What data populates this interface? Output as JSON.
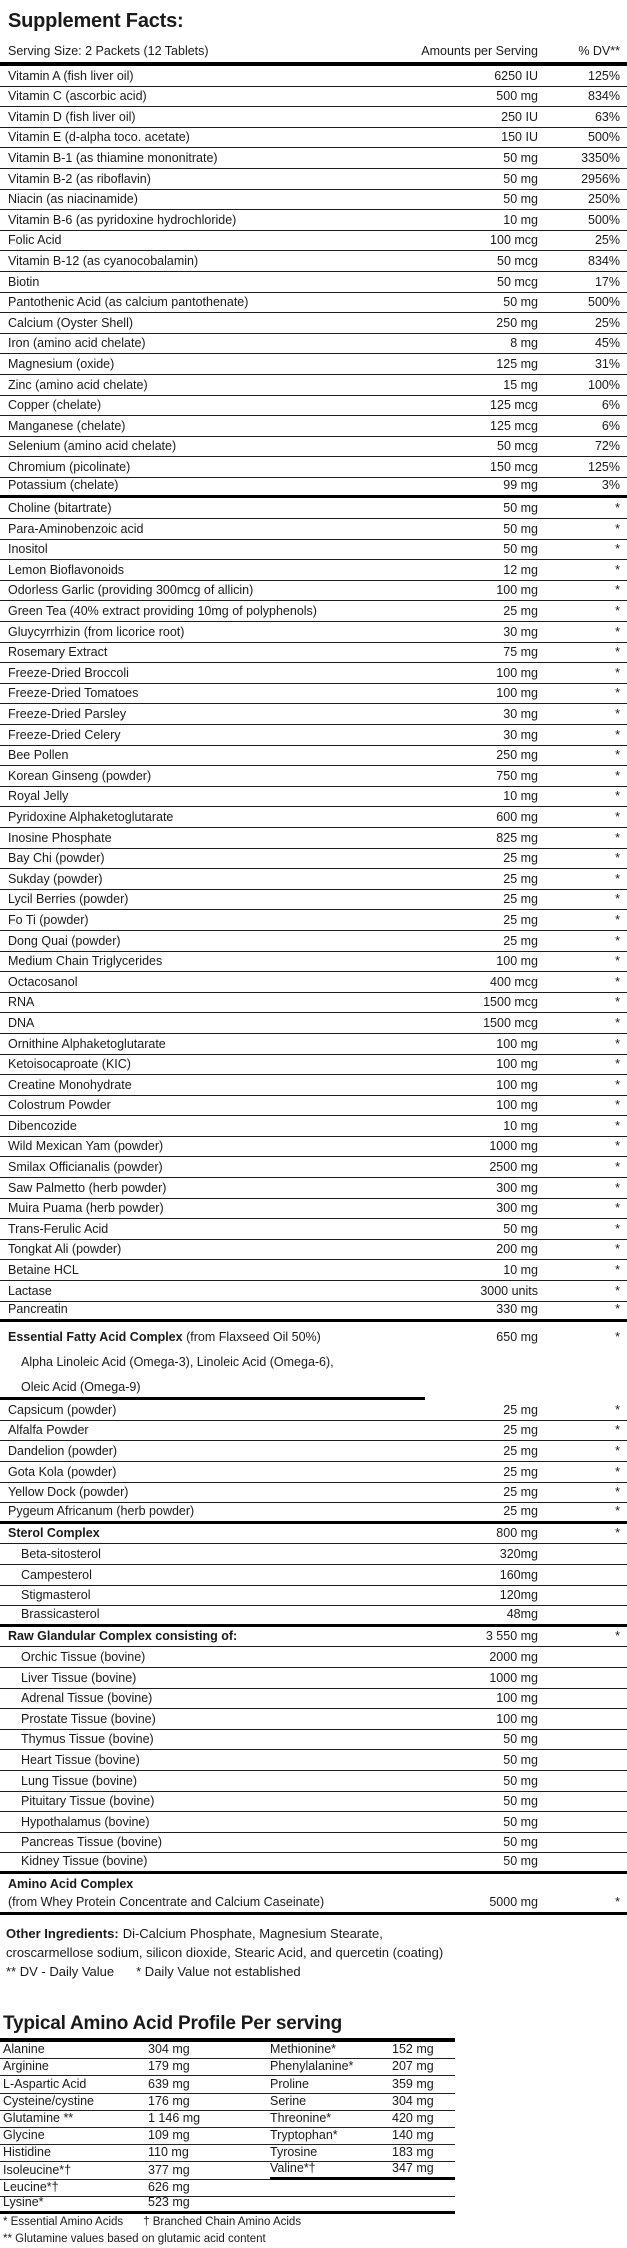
{
  "title": "Supplement Facts:",
  "colors": {
    "background": "#ffffff",
    "text": "#1a1a1a",
    "border": "#000000"
  },
  "supplement_table": {
    "header": {
      "serving_size": "Serving Size: 2 Packets (12 Tablets)",
      "amounts": "Amounts per Serving",
      "dv": "% DV**"
    },
    "rows": [
      {
        "name": "Vitamin A (fish liver oil)",
        "amount": "6250 IU",
        "dv": "125%"
      },
      {
        "name": "Vitamin C (ascorbic acid)",
        "amount": "500 mg",
        "dv": "834%"
      },
      {
        "name": "Vitamin D (fish liver oil)",
        "amount": "250 IU",
        "dv": "63%"
      },
      {
        "name": "Vitamin E (d-alpha toco. acetate)",
        "amount": "150 IU",
        "dv": "500%"
      },
      {
        "name": "Vitamin B-1 (as thiamine mononitrate)",
        "amount": "50 mg",
        "dv": "3350%"
      },
      {
        "name": "Vitamin B-2 (as riboflavin)",
        "amount": "50 mg",
        "dv": "2956%"
      },
      {
        "name": "Niacin (as niacinamide)",
        "amount": "50 mg",
        "dv": "250%"
      },
      {
        "name": "Vitamin B-6 (as pyridoxine hydrochloride)",
        "amount": "10 mg",
        "dv": "500%"
      },
      {
        "name": "Folic Acid",
        "amount": "100 mcg",
        "dv": "25%"
      },
      {
        "name": "Vitamin B-12 (as cyanocobalamin)",
        "amount": "50 mcg",
        "dv": "834%"
      },
      {
        "name": "Biotin",
        "amount": "50 mcg",
        "dv": "17%"
      },
      {
        "name": "Pantothenic Acid (as calcium pantothenate)",
        "amount": "50 mg",
        "dv": "500%"
      },
      {
        "name": "Calcium (Oyster Shell)",
        "amount": "250 mg",
        "dv": "25%"
      },
      {
        "name": "Iron (amino acid chelate)",
        "amount": "8 mg",
        "dv": "45%"
      },
      {
        "name": "Magnesium (oxide)",
        "amount": "125 mg",
        "dv": "31%"
      },
      {
        "name": "Zinc (amino acid chelate)",
        "amount": "15 mg",
        "dv": "100%"
      },
      {
        "name": "Copper (chelate)",
        "amount": "125 mcg",
        "dv": "6%"
      },
      {
        "name": "Manganese (chelate)",
        "amount": "125 mcg",
        "dv": "6%"
      },
      {
        "name": "Selenium (amino acid chelate)",
        "amount": "50 mcg",
        "dv": "72%"
      },
      {
        "name": "Chromium (picolinate)",
        "amount": "150 mcg",
        "dv": "125%"
      },
      {
        "name": "Potassium (chelate)",
        "amount": "99 mg",
        "dv": "3%",
        "divider": "thick"
      },
      {
        "name": "Choline (bitartrate)",
        "amount": "50 mg",
        "dv": "*"
      },
      {
        "name": "Para-Aminobenzoic acid",
        "amount": "50 mg",
        "dv": "*"
      },
      {
        "name": "Inositol",
        "amount": "50 mg",
        "dv": "*"
      },
      {
        "name": "Lemon Bioflavonoids",
        "amount": "12 mg",
        "dv": "*"
      },
      {
        "name": "Odorless Garlic (providing 300mcg of allicin)",
        "amount": "100 mg",
        "dv": "*"
      },
      {
        "name": "Green Tea (40% extract providing 10mg of polyphenols)",
        "amount": "25 mg",
        "dv": "*"
      },
      {
        "name": "Gluycyrrhizin (from licorice root)",
        "amount": "30 mg",
        "dv": "*"
      },
      {
        "name": "Rosemary Extract",
        "amount": "75 mg",
        "dv": "*"
      },
      {
        "name": "Freeze-Dried Broccoli",
        "amount": "100 mg",
        "dv": "*"
      },
      {
        "name": "Freeze-Dried Tomatoes",
        "amount": "100 mg",
        "dv": "*"
      },
      {
        "name": "Freeze-Dried Parsley",
        "amount": "30 mg",
        "dv": "*"
      },
      {
        "name": "Freeze-Dried Celery",
        "amount": "30 mg",
        "dv": "*"
      },
      {
        "name": "Bee Pollen",
        "amount": "250 mg",
        "dv": "*"
      },
      {
        "name": "Korean Ginseng (powder)",
        "amount": "750 mg",
        "dv": "*"
      },
      {
        "name": "Royal Jelly",
        "amount": "10 mg",
        "dv": "*"
      },
      {
        "name": "Pyridoxine Alphaketoglutarate",
        "amount": "600 mg",
        "dv": "*"
      },
      {
        "name": "Inosine Phosphate",
        "amount": "825 mg",
        "dv": "*"
      },
      {
        "name": "Bay Chi (powder)",
        "amount": "25 mg",
        "dv": "*"
      },
      {
        "name": "Sukday (powder)",
        "amount": "25 mg",
        "dv": "*"
      },
      {
        "name": "Lycil Berries (powder)",
        "amount": "25 mg",
        "dv": "*"
      },
      {
        "name": "Fo Ti (powder)",
        "amount": "25 mg",
        "dv": "*"
      },
      {
        "name": "Dong Quai (powder)",
        "amount": "25 mg",
        "dv": "*"
      },
      {
        "name": "Medium Chain Triglycerides",
        "amount": "100 mg",
        "dv": "*"
      },
      {
        "name": "Octacosanol",
        "amount": "400 mcg",
        "dv": "*"
      },
      {
        "name": "RNA",
        "amount": "1500 mcg",
        "dv": "*"
      },
      {
        "name": "DNA",
        "amount": "1500 mcg",
        "dv": "*"
      },
      {
        "name": "Ornithine Alphaketoglutarate",
        "amount": "100 mg",
        "dv": "*"
      },
      {
        "name": "Ketoisocaproate (KIC)",
        "amount": "100 mg",
        "dv": "*"
      },
      {
        "name": "Creatine Monohydrate",
        "amount": "100 mg",
        "dv": "*"
      },
      {
        "name": "Colostrum Powder",
        "amount": "100 mg",
        "dv": "*"
      },
      {
        "name": "Dibencozide",
        "amount": "10 mg",
        "dv": "*"
      },
      {
        "name": "Wild Mexican Yam (powder)",
        "amount": "1000 mg",
        "dv": "*"
      },
      {
        "name": "Smilax Officianalis (powder)",
        "amount": "2500 mg",
        "dv": "*"
      },
      {
        "name": "Saw Palmetto (herb powder)",
        "amount": "300 mg",
        "dv": "*"
      },
      {
        "name": "Muira Puama (herb powder)",
        "amount": "300 mg",
        "dv": "*"
      },
      {
        "name": "Trans-Ferulic Acid",
        "amount": "50 mg",
        "dv": "*"
      },
      {
        "name": "Tongkat Ali (powder)",
        "amount": "200 mg",
        "dv": "*"
      },
      {
        "name": "Betaine HCL",
        "amount": "10 mg",
        "dv": "*"
      },
      {
        "name": "Lactase",
        "amount": "3000 units",
        "dv": "*"
      },
      {
        "name": "Pancreatin",
        "amount": "330 mg",
        "dv": "*",
        "divider": "thick"
      },
      {
        "lead": "Essential Fatty Acid Complex",
        "name": " (from Flaxseed Oil 50%)",
        "amount": "650 mg",
        "dv": "*",
        "divider": "none",
        "tall": true
      },
      {
        "name": "Alpha Linoleic Acid (Omega-3), Linoleic Acid (Omega-6),",
        "indent": true,
        "divider": "none",
        "tall": true
      },
      {
        "name": "Oleic Acid (Omega-9)",
        "indent": true,
        "divider": "partial",
        "tall": true
      },
      {
        "name": "Capsicum (powder)",
        "amount": "25 mg",
        "dv": "*"
      },
      {
        "name": "Alfalfa Powder",
        "amount": "25 mg",
        "dv": "*"
      },
      {
        "name": "Dandelion (powder)",
        "amount": "25 mg",
        "dv": "*"
      },
      {
        "name": "Gota Kola (powder)",
        "amount": "25 mg",
        "dv": "*"
      },
      {
        "name": "Yellow Dock (powder)",
        "amount": "25 mg",
        "dv": "*"
      },
      {
        "name": "Pygeum Africanum (herb powder)",
        "amount": "25 mg",
        "dv": "*",
        "divider": "thick"
      },
      {
        "lead": "Sterol Complex",
        "amount": "800 mg",
        "dv": "*"
      },
      {
        "name": "Beta-sitosterol",
        "amount": "320mg",
        "indent": true
      },
      {
        "name": "Campesterol",
        "amount": "160mg",
        "indent": true
      },
      {
        "name": "Stigmasterol",
        "amount": "120mg",
        "indent": true
      },
      {
        "name": "Brassicasterol",
        "amount": "48mg",
        "indent": true,
        "divider": "thick"
      },
      {
        "lead": "Raw Glandular Complex consisting of:",
        "amount": "3 550 mg",
        "dv": "*"
      },
      {
        "name": "Orchic Tissue (bovine)",
        "amount": "2000 mg",
        "indent": true
      },
      {
        "name": "Liver Tissue (bovine)",
        "amount": "1000 mg",
        "indent": true
      },
      {
        "name": "Adrenal Tissue (bovine)",
        "amount": "100 mg",
        "indent": true
      },
      {
        "name": "Prostate Tissue (bovine)",
        "amount": "100 mg",
        "indent": true
      },
      {
        "name": "Thymus Tissue (bovine)",
        "amount": "50 mg",
        "indent": true
      },
      {
        "name": "Heart Tissue (bovine)",
        "amount": "50 mg",
        "indent": true
      },
      {
        "name": "Lung Tissue (bovine)",
        "amount": "50 mg",
        "indent": true
      },
      {
        "name": "Pituitary Tissue (bovine)",
        "amount": "50 mg",
        "indent": true
      },
      {
        "name": "Hypothalamus (bovine)",
        "amount": "50 mg",
        "indent": true
      },
      {
        "name": "Pancreas Tissue (bovine)",
        "amount": "50 mg",
        "indent": true
      },
      {
        "name": "Kidney Tissue (bovine)",
        "amount": "50 mg",
        "indent": true,
        "divider": "thick"
      },
      {
        "lead": "Amino Acid Complex",
        "divider": "none"
      },
      {
        "name": "(from Whey Protein Concentrate and Calcium Caseinate)",
        "amount": "5000 mg",
        "dv": "*",
        "divider": "thick"
      }
    ]
  },
  "other_ingredients": {
    "label": "Other Ingredients:",
    "line1": "Di-Calcium Phosphate, Magnesium Stearate,",
    "line2": "croscarmellose sodium, silicon dioxide, Stearic Acid, and quercetin (coating)",
    "dv_note": "** DV - Daily Value",
    "star_note": "* Daily Value not established"
  },
  "amino_profile": {
    "title": "Typical Amino Acid Profile Per serving",
    "rows": [
      {
        "l_name": "Alanine",
        "l_val": "304 mg",
        "r_name": "Methionine*",
        "r_val": "152 mg"
      },
      {
        "l_name": "Arginine",
        "l_val": "179 mg",
        "r_name": "Phenylalanine*",
        "r_val": "207 mg"
      },
      {
        "l_name": "L-Aspartic Acid",
        "l_val": "639 mg",
        "r_name": "Proline",
        "r_val": "359 mg"
      },
      {
        "l_name": "Cysteine/cystine",
        "l_val": "176 mg",
        "r_name": "Serine",
        "r_val": "304 mg"
      },
      {
        "l_name": "Glutamine **",
        "l_val": "1 146 mg",
        "r_name": "Threonine*",
        "r_val": "420 mg"
      },
      {
        "l_name": "Glycine",
        "l_val": "109 mg",
        "r_name": "Tryptophan*",
        "r_val": "140 mg"
      },
      {
        "l_name": "Histidine",
        "l_val": "110 mg",
        "r_name": "Tyrosine",
        "r_val": "183 mg"
      },
      {
        "l_name": "Isoleucine*†",
        "l_val": "377 mg",
        "r_name": "Valine*†",
        "r_val": "347 mg",
        "r_divider": "thick"
      },
      {
        "l_name": "Leucine*†",
        "l_val": "626 mg",
        "r_name": "",
        "r_val": ""
      },
      {
        "l_name": "Lysine*",
        "l_val": "523 mg",
        "r_name": "",
        "r_val": "",
        "divider": "thick"
      }
    ],
    "footnote_essential": "* Essential Amino Acids",
    "footnote_bcaa": "† Branched Chain Amino Acids",
    "footnote_glutamine": "** Glutamine values based on glutamic acid content"
  }
}
